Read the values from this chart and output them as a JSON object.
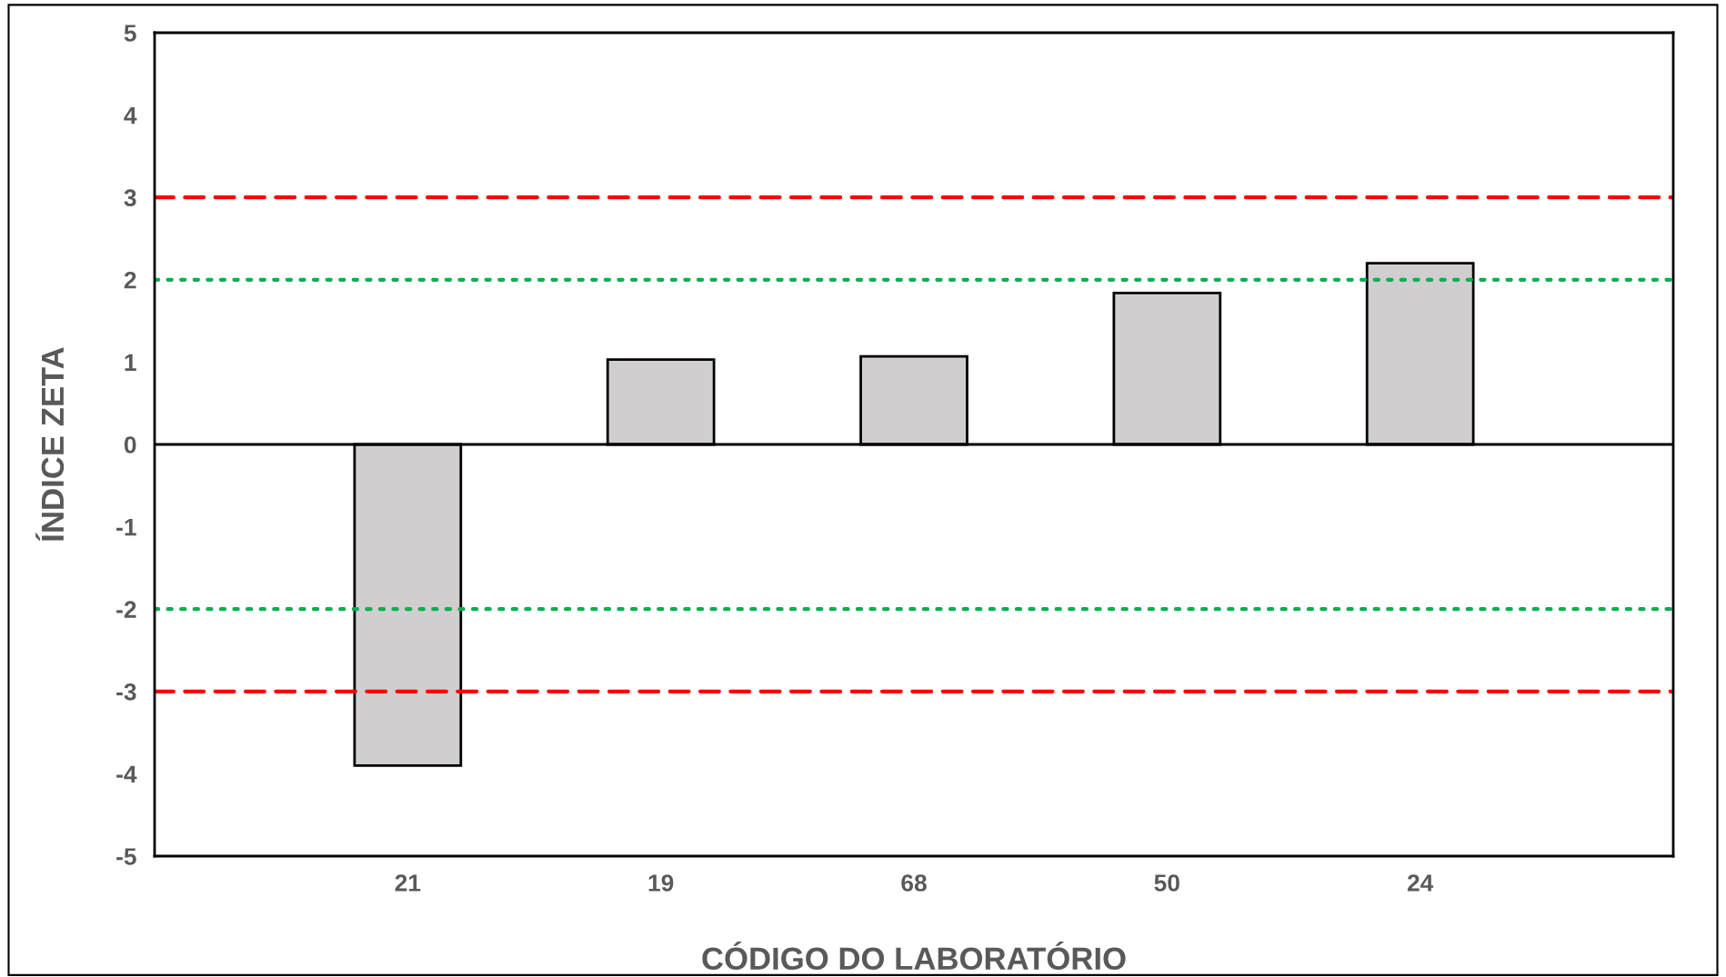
{
  "chart_data": {
    "type": "bar",
    "xlabel": "CÓDIGO DO LABORATÓRIO",
    "ylabel": "ÍNDICE ZETA",
    "categories": [
      "21",
      "19",
      "68",
      "50",
      "24"
    ],
    "values": [
      -3.9,
      1.03,
      1.07,
      1.84,
      2.2
    ],
    "color": "#d0cece",
    "ylim": [
      -5,
      5
    ],
    "yticks": [
      -5,
      -4,
      -3,
      -2,
      -1,
      0,
      1,
      2,
      3,
      4,
      5
    ],
    "grid": false,
    "legend": false,
    "ref_lines": [
      {
        "axis": "y",
        "value": 3,
        "color": "#ff0000",
        "line_style": "dashed"
      },
      {
        "axis": "y",
        "value": -3,
        "color": "#ff0000",
        "line_style": "dashed"
      },
      {
        "axis": "y",
        "value": 2,
        "color": "#00b050",
        "line_style": "dotted"
      },
      {
        "axis": "y",
        "value": -2,
        "color": "#00b050",
        "line_style": "dotted"
      },
      {
        "axis": "y",
        "value": 0,
        "color": "#000000",
        "line_style": "solid"
      }
    ]
  }
}
